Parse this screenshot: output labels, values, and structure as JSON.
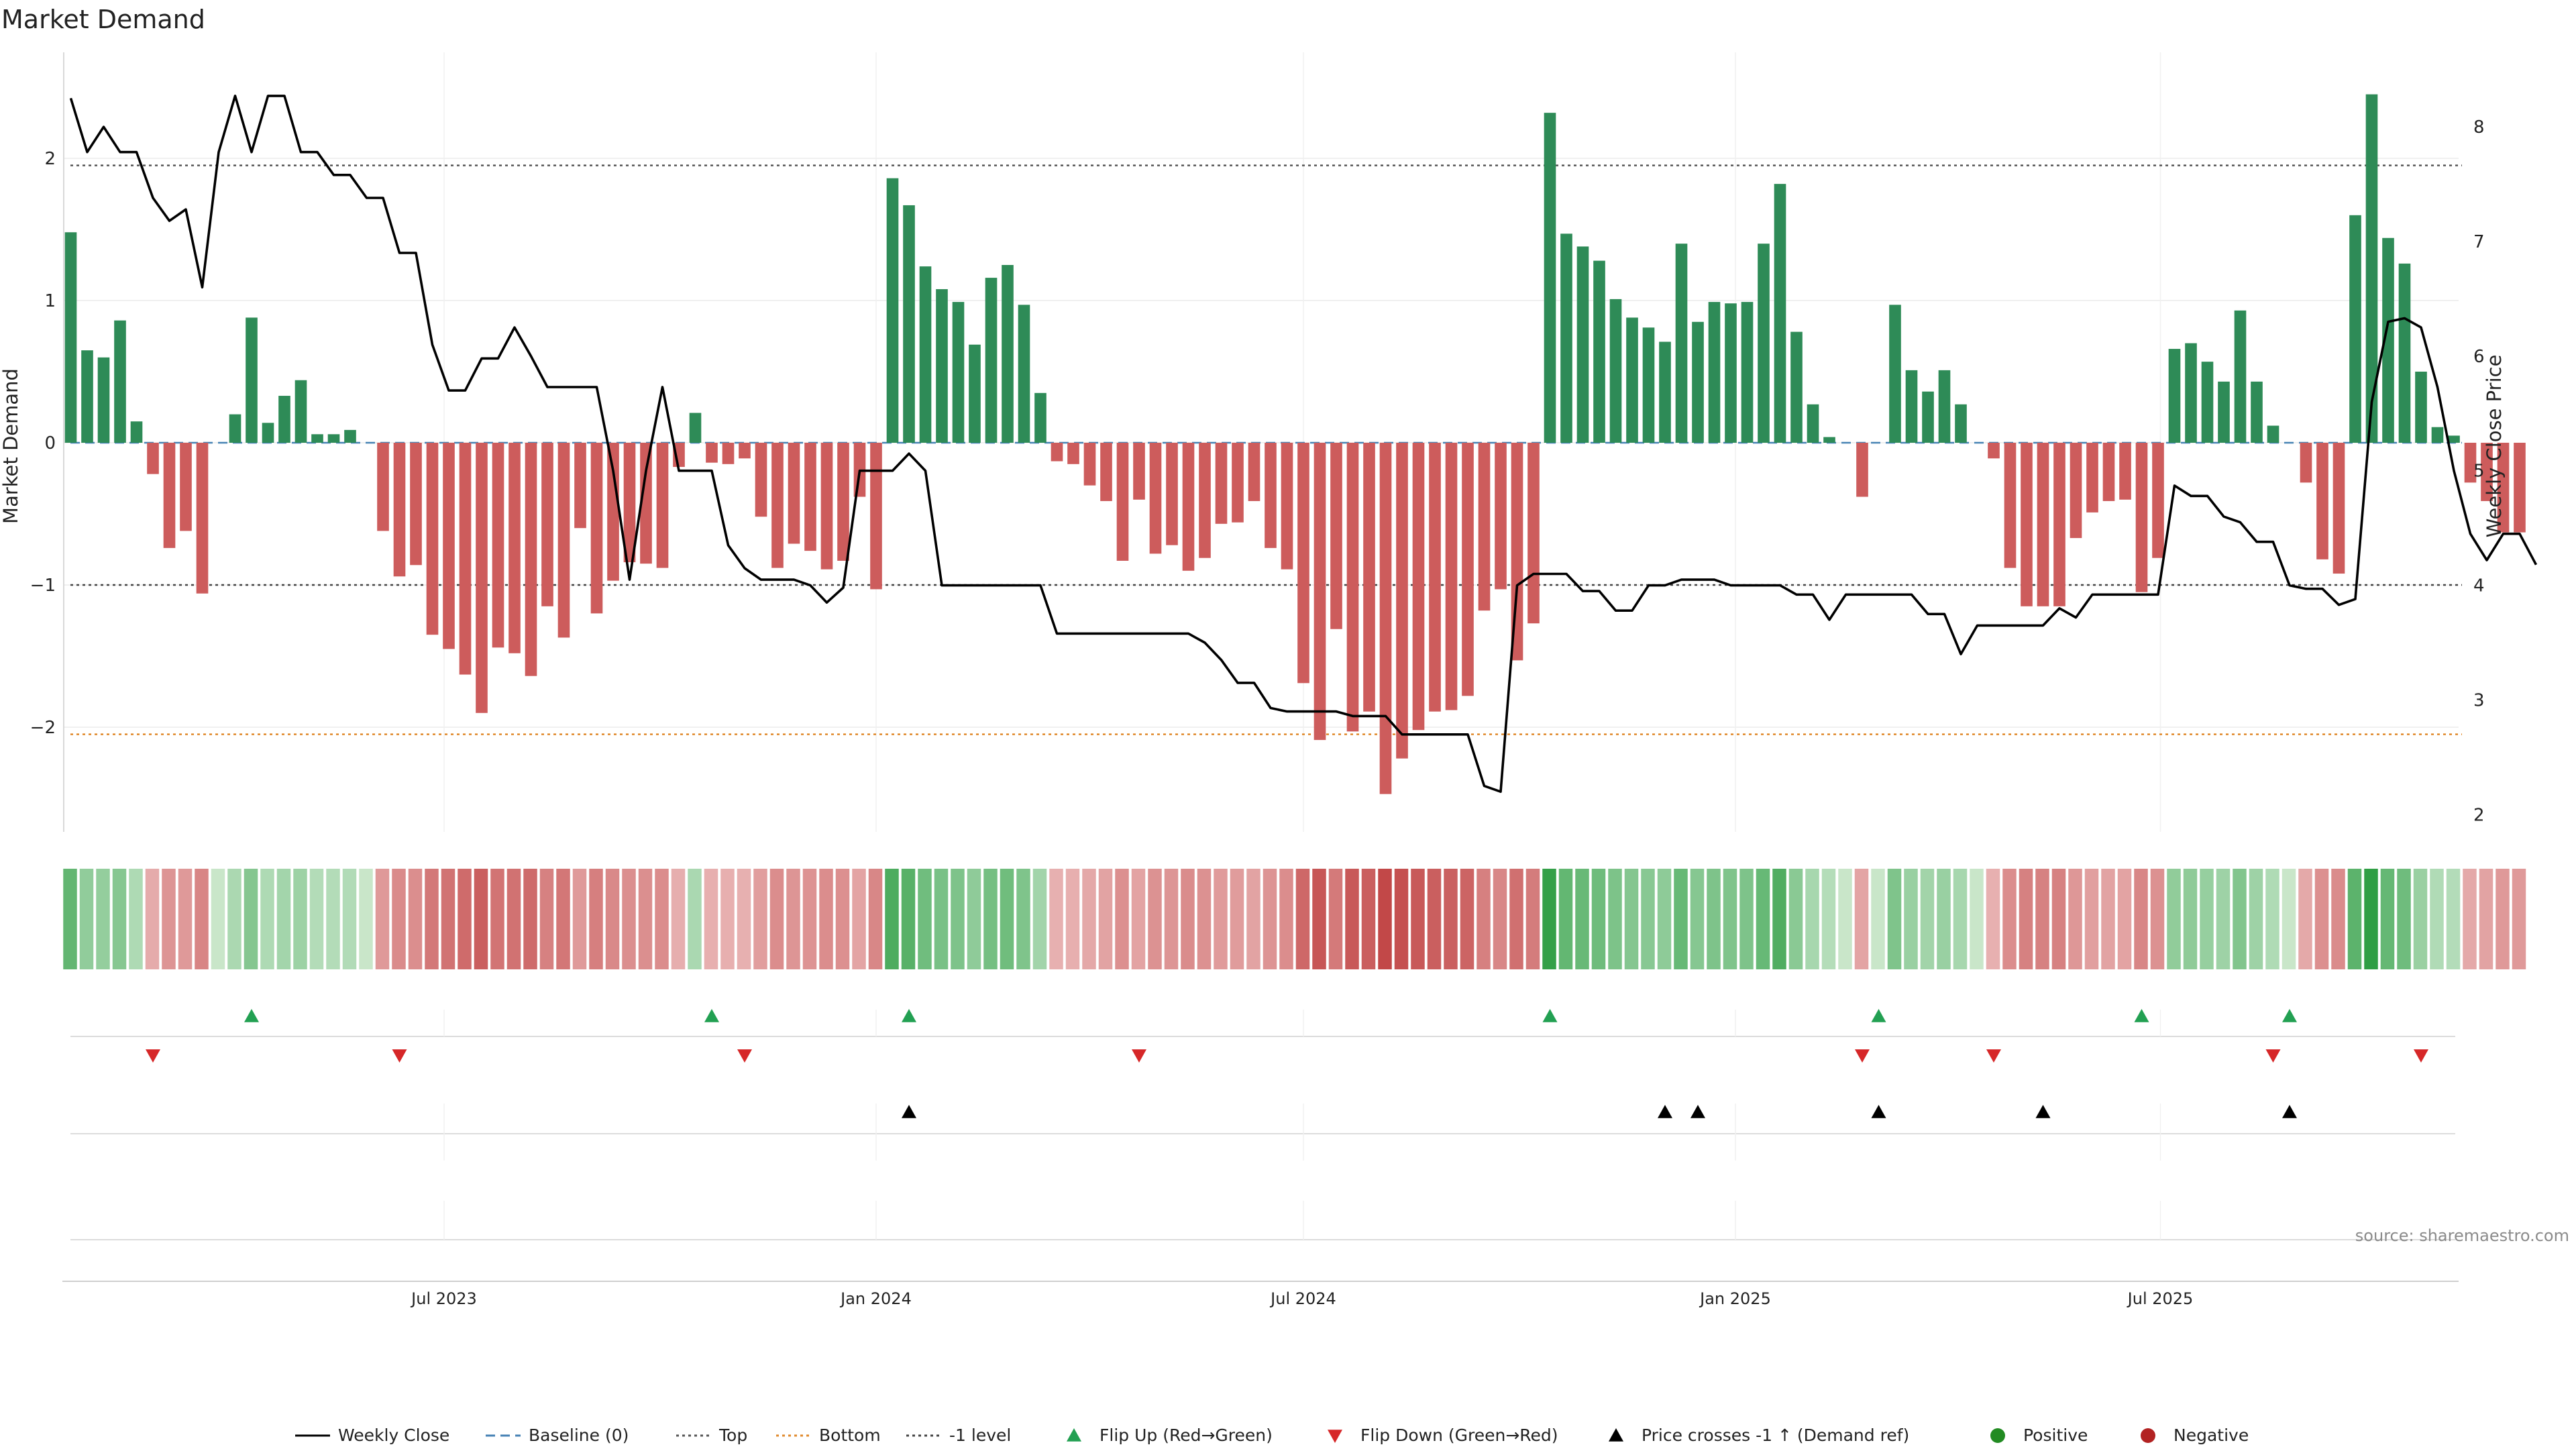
{
  "title": "Market Demand",
  "source": "source: sharemaestro.com",
  "colors": {
    "positive_bar": "#2e8b57",
    "negative_bar": "#cd5c5c",
    "price_line": "#000000",
    "baseline": "#4682b4",
    "top_line": "#555555",
    "bottom_line": "#e08a2c",
    "minus1_line": "#444444",
    "flip_up": "#22a052",
    "flip_down": "#d62728",
    "cross_marker": "#000000",
    "positive_dot": "#228b22",
    "negative_dot": "#b22222"
  },
  "legend": [
    {
      "label": "Weekly Close",
      "kind": "line",
      "color": "#000000",
      "dash": ""
    },
    {
      "label": "Baseline (0)",
      "kind": "line",
      "color": "#4682b4",
      "dash": "14,8"
    },
    {
      "label": "Top",
      "kind": "line",
      "color": "#555555",
      "dash": "4,5"
    },
    {
      "label": "Bottom",
      "kind": "line",
      "color": "#e08a2c",
      "dash": "4,5"
    },
    {
      "label": "-1 level",
      "kind": "line",
      "color": "#444444",
      "dash": "4,5"
    },
    {
      "label": "Flip Up (Red→Green)",
      "kind": "triangle-up",
      "color": "#22a052"
    },
    {
      "label": "Flip Down (Green→Red)",
      "kind": "triangle-down",
      "color": "#d62728"
    },
    {
      "label": "Price crosses -1 ↑ (Demand ref)",
      "kind": "triangle-up",
      "color": "#000000"
    },
    {
      "label": "Positive",
      "kind": "dot",
      "color": "#228b22"
    },
    {
      "label": "Negative",
      "kind": "dot",
      "color": "#b22222"
    }
  ],
  "chart_data": {
    "type": "bar",
    "title": "Market Demand",
    "xlabel": "",
    "ylabel": "Market Demand",
    "y2label": "Weekly Close Price",
    "ylim": [
      -2.7,
      2.7
    ],
    "y2lim": [
      1.85,
      8.65
    ],
    "yticks": [
      -2,
      -1,
      0,
      1,
      2
    ],
    "y2ticks": [
      2,
      3,
      4,
      5,
      6,
      7,
      8
    ],
    "x_start": "2023-01-23",
    "x_step_days": 7,
    "x_range": [
      "2023-01-20",
      "2025-11-05"
    ],
    "xticks": [
      {
        "date": "2023-07-01",
        "label": "Jul 2023"
      },
      {
        "date": "2024-01-01",
        "label": "Jan 2024"
      },
      {
        "date": "2024-07-01",
        "label": "Jul 2024"
      },
      {
        "date": "2025-01-01",
        "label": "Jan 2025"
      },
      {
        "date": "2025-07-01",
        "label": "Jul 2025"
      }
    ],
    "reference_lines": {
      "top": 1.95,
      "bottom": -2.05,
      "minus1": -1.0,
      "baseline": 0
    },
    "series": [
      {
        "name": "Market Demand",
        "values": [
          1.48,
          0.65,
          0.6,
          0.86,
          0.15,
          -0.22,
          -0.74,
          -0.62,
          -1.06,
          0.0,
          0.2,
          0.88,
          0.14,
          0.33,
          0.44,
          0.06,
          0.06,
          0.09,
          0.0,
          -0.62,
          -0.94,
          -0.86,
          -1.35,
          -1.45,
          -1.63,
          -1.9,
          -1.44,
          -1.48,
          -1.64,
          -1.15,
          -1.37,
          -0.6,
          -1.2,
          -0.97,
          -0.84,
          -0.85,
          -0.88,
          -0.17,
          0.21,
          -0.14,
          -0.15,
          -0.11,
          -0.52,
          -0.88,
          -0.71,
          -0.76,
          -0.89,
          -0.83,
          -0.38,
          -1.03,
          1.86,
          1.67,
          1.24,
          1.08,
          0.99,
          0.69,
          1.16,
          1.25,
          0.97,
          0.35,
          -0.13,
          -0.15,
          -0.3,
          -0.41,
          -0.83,
          -0.4,
          -0.78,
          -0.72,
          -0.9,
          -0.81,
          -0.57,
          -0.56,
          -0.41,
          -0.74,
          -0.89,
          -1.69,
          -2.09,
          -1.31,
          -2.03,
          -1.89,
          -2.47,
          -2.22,
          -2.02,
          -1.89,
          -1.88,
          -1.78,
          -1.18,
          -1.03,
          -1.53,
          -1.27,
          2.32,
          1.47,
          1.38,
          1.28,
          1.01,
          0.88,
          0.81,
          0.71,
          1.4,
          0.85,
          0.99,
          0.98,
          0.99,
          1.4,
          1.82,
          0.78,
          0.27,
          0.04,
          0.0,
          -0.38,
          0.0,
          0.97,
          0.51,
          0.36,
          0.51,
          0.27,
          0.0,
          -0.11,
          -0.88,
          -1.15,
          -1.15,
          -1.15,
          -0.67,
          -0.49,
          -0.41,
          -0.4,
          -1.05,
          -0.81,
          0.66,
          0.7,
          0.57,
          0.43,
          0.93,
          0.43,
          0.12,
          0.0,
          -0.28,
          -0.82,
          -0.92,
          1.6,
          2.45,
          1.44,
          1.26,
          0.5,
          0.11,
          0.05,
          -0.28,
          -0.41,
          -0.63,
          -0.63
        ]
      },
      {
        "name": "Weekly Close",
        "values": [
          8.25,
          7.78,
          8.0,
          7.78,
          7.78,
          7.38,
          7.18,
          7.28,
          6.6,
          7.78,
          8.27,
          7.78,
          8.27,
          8.27,
          7.78,
          7.78,
          7.58,
          7.58,
          7.38,
          7.38,
          6.9,
          6.9,
          6.1,
          5.7,
          5.7,
          5.98,
          5.98,
          6.25,
          6.0,
          5.73,
          5.73,
          5.73,
          5.73,
          5.0,
          4.05,
          5.0,
          5.73,
          5.0,
          5.0,
          5.0,
          4.35,
          4.15,
          4.05,
          4.05,
          4.05,
          4.0,
          3.85,
          3.98,
          5.0,
          5.0,
          5.0,
          5.15,
          5.0,
          4.0,
          4.0,
          4.0,
          4.0,
          4.0,
          4.0,
          4.0,
          3.58,
          3.58,
          3.58,
          3.58,
          3.58,
          3.58,
          3.58,
          3.58,
          3.58,
          3.5,
          3.35,
          3.15,
          3.15,
          2.93,
          2.9,
          2.9,
          2.9,
          2.9,
          2.86,
          2.86,
          2.86,
          2.7,
          2.7,
          2.7,
          2.7,
          2.7,
          2.25,
          2.2,
          4.0,
          4.1,
          4.1,
          4.1,
          3.95,
          3.95,
          3.78,
          3.78,
          4.0,
          4.0,
          4.05,
          4.05,
          4.05,
          4.0,
          4.0,
          4.0,
          4.0,
          3.92,
          3.92,
          3.7,
          3.92,
          3.92,
          3.92,
          3.92,
          3.92,
          3.75,
          3.75,
          3.4,
          3.65,
          3.65,
          3.65,
          3.65,
          3.65,
          3.8,
          3.72,
          3.92,
          3.92,
          3.92,
          3.92,
          3.92,
          4.87,
          4.78,
          4.78,
          4.6,
          4.55,
          4.38,
          4.38,
          4.0,
          3.97,
          3.97,
          3.83,
          3.88,
          5.6,
          6.3,
          6.33,
          6.25,
          5.73,
          5.0,
          4.45,
          4.22,
          4.45,
          4.45,
          4.18
        ]
      }
    ],
    "heat_strip": "Market Demand intensity per week (green = positive, red = negative)",
    "markers": {
      "flip_up": [
        "2023-04-10",
        "2023-10-23",
        "2024-01-15",
        "2024-10-14",
        "2025-03-03",
        "2025-06-23",
        "2025-08-25"
      ],
      "flip_down": [
        "2023-02-27",
        "2023-06-12",
        "2023-11-06",
        "2024-04-22",
        "2025-02-24",
        "2025-04-21",
        "2025-08-18",
        "2025-10-20"
      ],
      "price_cross_minus1_up": [
        "2024-01-15",
        "2024-12-02",
        "2024-12-16",
        "2025-03-03",
        "2025-05-12",
        "2025-08-25"
      ]
    }
  }
}
